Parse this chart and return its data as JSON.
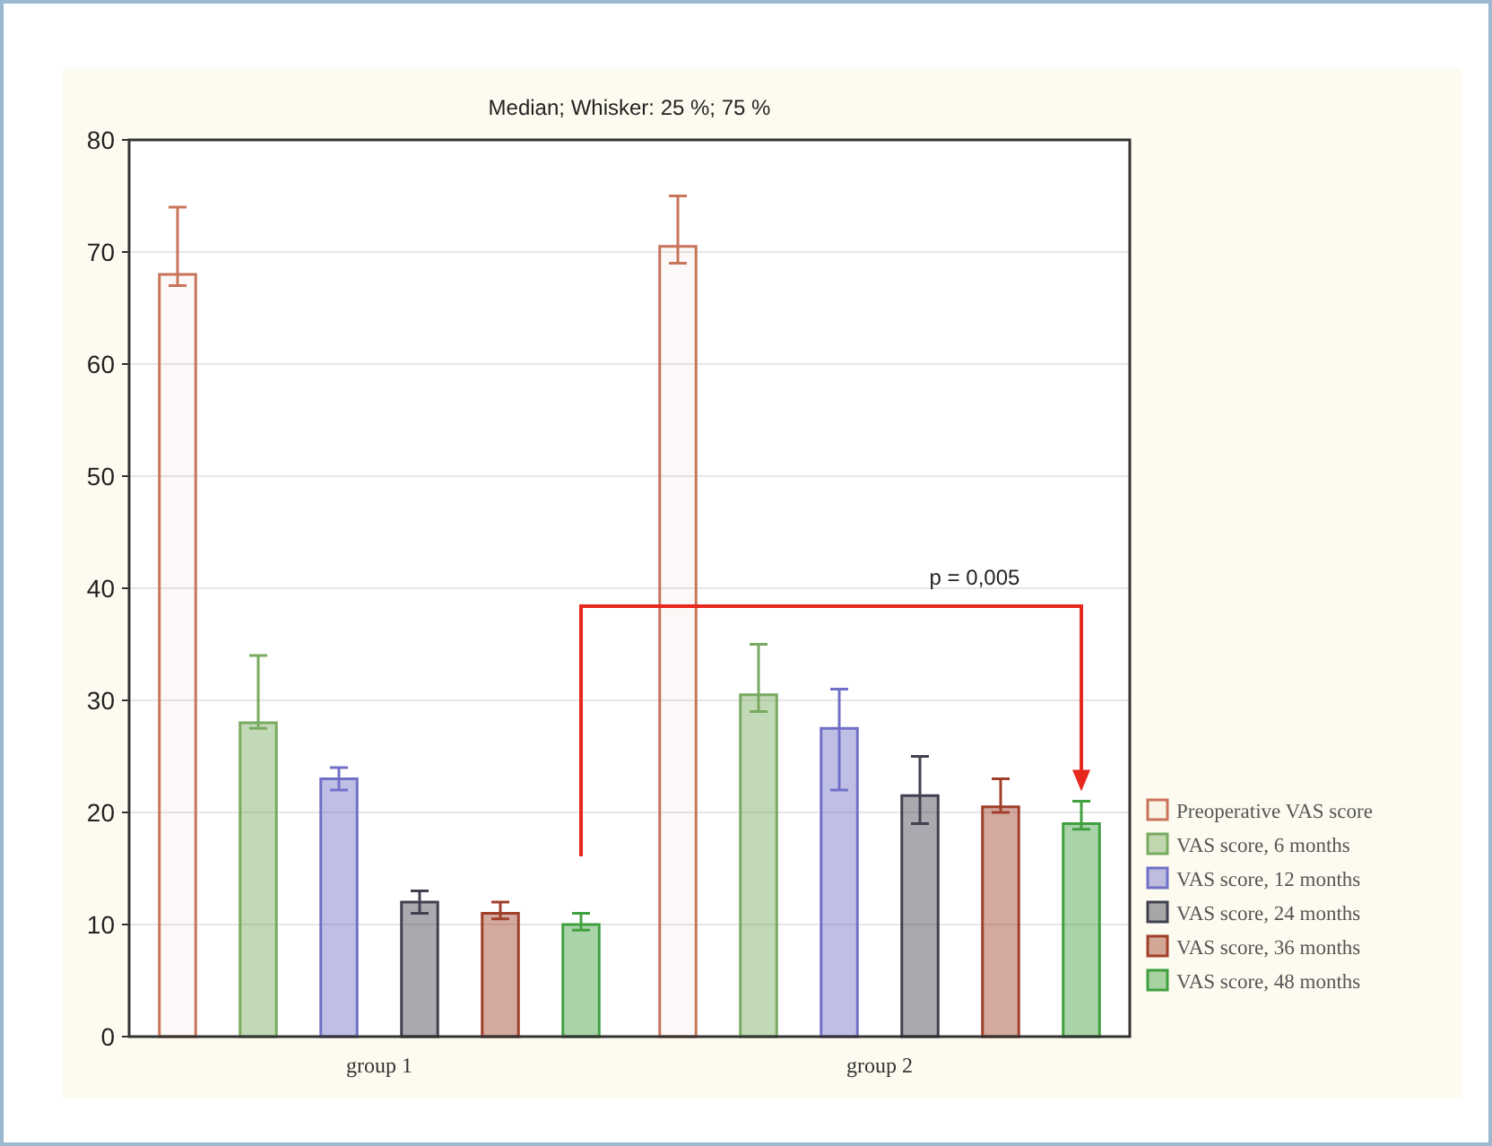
{
  "chart_data": {
    "type": "bar",
    "title": "Median; Whisker: 25 %; 75 %",
    "categories": [
      "group 1",
      "group 2"
    ],
    "series": [
      {
        "name": "Preoperative VAS score",
        "color": "#c8745a",
        "values": [
          68,
          70.5
        ],
        "errors": [
          [
            67,
            74
          ],
          [
            69,
            75
          ]
        ]
      },
      {
        "name": "VAS score, 6 months",
        "color": "#78aa60",
        "values": [
          28,
          30.5
        ],
        "errors": [
          [
            27.5,
            34
          ],
          [
            29,
            35
          ]
        ]
      },
      {
        "name": "VAS score, 12 months",
        "color": "#7070c8",
        "values": [
          23,
          27.5
        ],
        "errors": [
          [
            22,
            24
          ],
          [
            22,
            31
          ]
        ]
      },
      {
        "name": "VAS score, 24 months",
        "color": "#404050",
        "values": [
          12,
          21.5
        ],
        "errors": [
          [
            11,
            13
          ],
          [
            19,
            25
          ]
        ]
      },
      {
        "name": "VAS score, 36 months",
        "color": "#a0402a",
        "values": [
          11,
          20.5
        ],
        "errors": [
          [
            10.5,
            12
          ],
          [
            20,
            23
          ]
        ]
      },
      {
        "name": "VAS score, 48 months",
        "color": "#40a040",
        "values": [
          10,
          19
        ],
        "errors": [
          [
            9.5,
            11
          ],
          [
            18.5,
            21
          ]
        ]
      }
    ],
    "ylim": [
      0,
      80
    ],
    "yticks": [
      0,
      10,
      20,
      30,
      40,
      50,
      60,
      70,
      80
    ],
    "grid": "y",
    "legend": "right",
    "annotations": [
      "p = 0,005"
    ]
  }
}
